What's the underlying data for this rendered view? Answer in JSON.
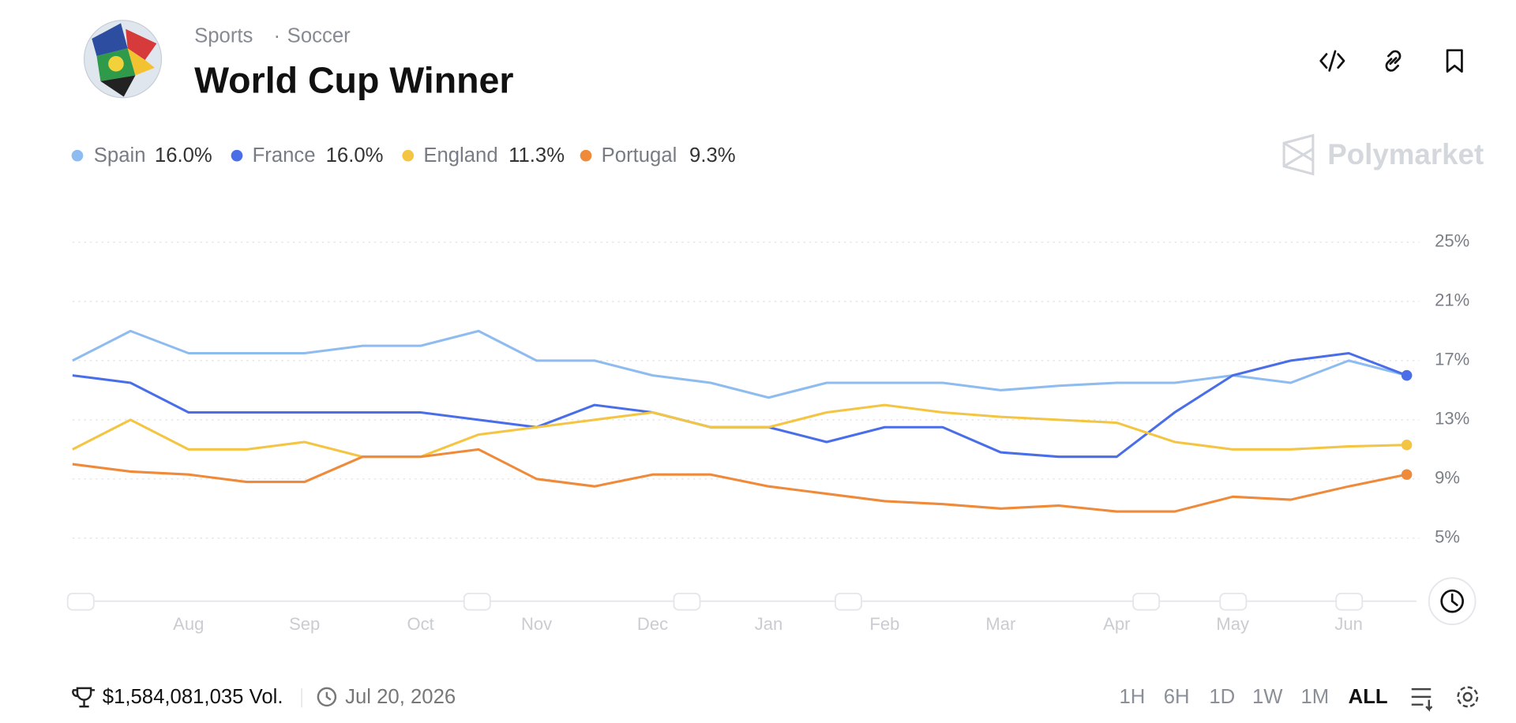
{
  "header": {
    "category": "Sports",
    "subcategory": "Soccer",
    "title": "World Cup Winner",
    "brand": "Polymarket"
  },
  "chart_data": {
    "type": "line",
    "categories": [
      null,
      null,
      "Aug",
      null,
      "Sep",
      null,
      "Oct",
      null,
      "Nov",
      null,
      "Dec",
      null,
      "Jan",
      null,
      "Feb",
      null,
      "Mar",
      null,
      "Apr",
      null,
      "May",
      null,
      "Jun",
      null
    ],
    "series": [
      {
        "name": "Spain",
        "color": "#8ebbf0",
        "values": [
          17,
          19,
          17.5,
          17.5,
          17.5,
          18,
          18,
          19,
          17,
          17,
          16,
          15.5,
          14.5,
          15.5,
          15.5,
          15.5,
          15,
          15.3,
          15.5,
          15.5,
          16,
          15.5,
          17,
          16
        ],
        "value_labels": [
          null,
          null,
          null,
          null,
          null,
          null,
          null,
          null,
          null,
          null,
          null,
          null,
          null,
          null,
          null,
          null,
          null,
          null,
          null,
          null,
          null,
          null,
          null,
          "16.0%"
        ]
      },
      {
        "name": "France",
        "color": "#4a6ee8",
        "values": [
          16,
          15.5,
          13.5,
          13.5,
          13.5,
          13.5,
          13.5,
          13,
          12.5,
          14,
          13.5,
          12.5,
          12.5,
          11.5,
          12.5,
          12.5,
          10.8,
          10.5,
          10.5,
          13.5,
          16,
          17,
          17.5,
          16
        ],
        "value_labels": [
          null,
          null,
          null,
          null,
          null,
          null,
          null,
          null,
          null,
          null,
          null,
          null,
          null,
          null,
          null,
          null,
          null,
          null,
          null,
          null,
          null,
          null,
          null,
          "16.0%"
        ]
      },
      {
        "name": "England",
        "color": "#f4c542",
        "values": [
          11,
          13,
          11,
          11,
          11.5,
          10.5,
          10.5,
          12,
          12.5,
          13,
          13.5,
          12.5,
          12.5,
          13.5,
          14,
          13.5,
          13.2,
          13,
          12.8,
          11.5,
          11,
          11,
          11.2,
          11.3
        ],
        "value_labels": [
          null,
          null,
          null,
          null,
          null,
          null,
          null,
          null,
          null,
          null,
          null,
          null,
          null,
          null,
          null,
          null,
          null,
          null,
          null,
          null,
          null,
          null,
          null,
          "11.3%"
        ]
      },
      {
        "name": "Portugal",
        "color": "#ee8a3a",
        "values": [
          10,
          9.5,
          9.3,
          8.8,
          8.8,
          10.5,
          10.5,
          11,
          9,
          8.5,
          9.3,
          9.3,
          8.5,
          8,
          7.5,
          7.3,
          7,
          7.2,
          6.8,
          6.8,
          7.8,
          7.6,
          8.5,
          9.3
        ],
        "value_labels": [
          null,
          null,
          null,
          null,
          null,
          null,
          null,
          null,
          null,
          null,
          null,
          null,
          null,
          null,
          null,
          null,
          null,
          null,
          null,
          null,
          null,
          null,
          null,
          "9.3%"
        ]
      }
    ],
    "ylim": [
      1,
      27
    ],
    "yticks": [
      {
        "value": 5,
        "label": "5%"
      },
      {
        "value": 9,
        "label": "9%"
      },
      {
        "value": 13,
        "label": "13%"
      },
      {
        "value": 17,
        "label": "17%"
      },
      {
        "value": 21,
        "label": "21%"
      },
      {
        "value": 25,
        "label": "25%"
      }
    ],
    "grid": true
  },
  "footer": {
    "volume": "$1,584,081,035 Vol.",
    "date": "Jul 20, 2026",
    "ranges": [
      "1H",
      "6H",
      "1D",
      "1W",
      "1M",
      "ALL"
    ]
  }
}
